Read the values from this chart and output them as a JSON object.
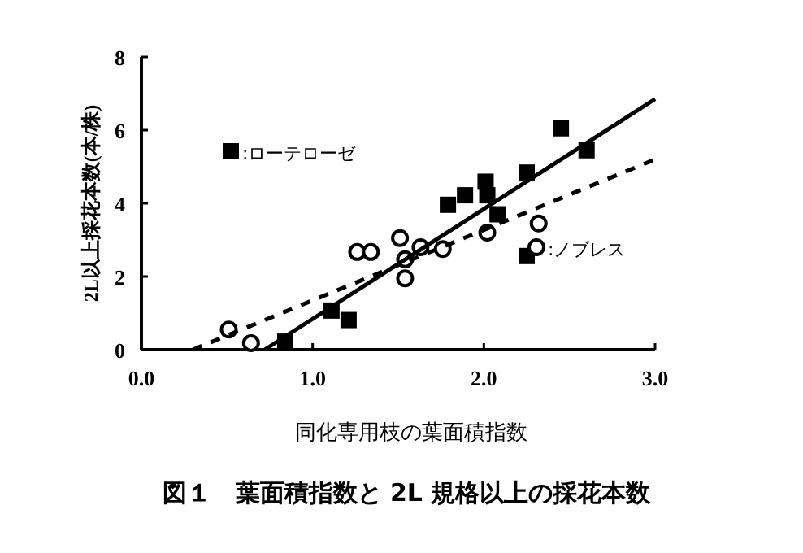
{
  "chart_data": {
    "type": "scatter",
    "title": "図１　葉面積指数と 2L 規格以上の採花本数",
    "xlabel": "同化専用枝の葉面積指数",
    "ylabel": "2L以上採花本数(本/株)",
    "xlim": [
      0,
      3
    ],
    "ylim": [
      0,
      8
    ],
    "xticks": [
      {
        "value": 0,
        "label": "0.0"
      },
      {
        "value": 1,
        "label": "1.0"
      },
      {
        "value": 2,
        "label": "2.0"
      },
      {
        "value": 3,
        "label": "3.0"
      }
    ],
    "yticks": [
      0,
      2,
      4,
      6,
      8
    ],
    "grid": false,
    "legend": "top left",
    "series": [
      {
        "name": ":ローテローゼ",
        "marker": "square",
        "color": "#000000",
        "x": [
          0.84,
          1.11,
          1.21,
          1.79,
          1.89,
          2.01,
          2.02,
          2.08,
          2.25,
          2.25,
          2.45,
          2.6
        ],
        "values": [
          0.22,
          1.07,
          0.81,
          3.96,
          4.22,
          4.59,
          4.22,
          3.7,
          4.84,
          2.56,
          6.05,
          5.45
        ]
      },
      {
        "name": ":ノブレス",
        "marker": "circle",
        "color": "#000000",
        "x": [
          0.51,
          0.64,
          1.26,
          1.34,
          1.51,
          1.54,
          1.54,
          1.63,
          1.76,
          2.02,
          2.32
        ],
        "values": [
          0.55,
          0.18,
          2.67,
          2.67,
          3.05,
          2.47,
          1.95,
          2.8,
          2.75,
          3.2,
          3.45
        ]
      },
      {
        "type": "line",
        "line_style": "solid",
        "marker": "none",
        "color": "#000000",
        "x": [
          0.72,
          3.0
        ],
        "values": [
          0,
          6.85
        ]
      },
      {
        "type": "line",
        "line_style": "dashed",
        "marker": "none",
        "color": "#000000",
        "x": [
          0.3,
          3.0
        ],
        "values": [
          0,
          5.2
        ]
      }
    ]
  }
}
